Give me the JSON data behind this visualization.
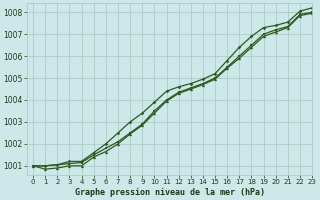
{
  "xlabel": "Graphe pression niveau de la mer (hPa)",
  "bg_color": "#cde8e8",
  "grid_color": "#b0c8c8",
  "line_color": "#2d5a1e",
  "xlim": [
    -0.5,
    23
  ],
  "ylim": [
    1000.6,
    1008.4
  ],
  "yticks": [
    1001,
    1002,
    1003,
    1004,
    1005,
    1006,
    1007,
    1008
  ],
  "xticks": [
    0,
    1,
    2,
    3,
    4,
    5,
    6,
    7,
    8,
    9,
    10,
    11,
    12,
    13,
    14,
    15,
    16,
    17,
    18,
    19,
    20,
    21,
    22,
    23
  ],
  "line1_x": [
    0,
    1,
    2,
    3,
    4,
    5,
    6,
    7,
    8,
    9,
    10,
    11,
    12,
    13,
    14,
    15,
    16,
    17,
    18,
    19,
    20,
    21,
    22,
    23
  ],
  "line1_y": [
    1001.0,
    1001.0,
    1001.05,
    1001.1,
    1001.15,
    1001.5,
    1001.8,
    1002.1,
    1002.5,
    1002.9,
    1003.5,
    1004.0,
    1004.35,
    1004.55,
    1004.75,
    1005.0,
    1005.5,
    1006.0,
    1006.5,
    1007.0,
    1007.2,
    1007.35,
    1007.9,
    1008.0
  ],
  "line2_x": [
    0,
    1,
    2,
    3,
    4,
    5,
    6,
    7,
    8,
    9,
    10,
    11,
    12,
    13,
    14,
    15,
    16,
    17,
    18,
    19,
    20,
    21,
    22,
    23
  ],
  "line2_y": [
    1001.0,
    1000.85,
    1000.9,
    1001.0,
    1001.0,
    1001.4,
    1001.65,
    1002.0,
    1002.45,
    1002.85,
    1003.4,
    1003.95,
    1004.3,
    1004.5,
    1004.7,
    1004.95,
    1005.45,
    1005.9,
    1006.4,
    1006.9,
    1007.1,
    1007.3,
    1007.85,
    1007.95
  ],
  "line3_x": [
    0,
    1,
    2,
    3,
    4,
    5,
    6,
    7,
    8,
    9,
    10,
    11,
    12,
    13,
    14,
    15,
    16,
    17,
    18,
    19,
    20,
    21,
    22,
    23
  ],
  "line3_y": [
    1001.0,
    1001.0,
    1001.05,
    1001.2,
    1001.2,
    1001.6,
    1002.0,
    1002.5,
    1003.0,
    1003.4,
    1003.9,
    1004.4,
    1004.6,
    1004.75,
    1004.95,
    1005.2,
    1005.8,
    1006.4,
    1006.9,
    1007.3,
    1007.4,
    1007.55,
    1008.05,
    1008.2
  ]
}
